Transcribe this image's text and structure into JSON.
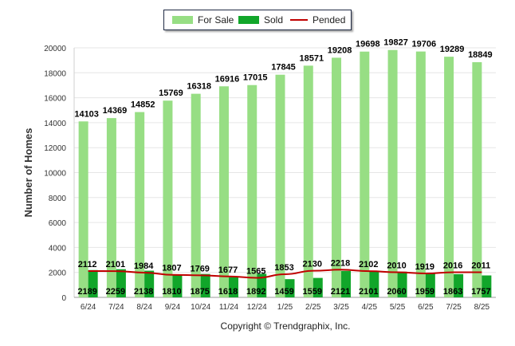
{
  "chart_data": {
    "type": "bar",
    "ylabel": "Number of Homes",
    "xlabel": "",
    "ylim": [
      0,
      20000
    ],
    "yticks": [
      0,
      2000,
      4000,
      6000,
      8000,
      10000,
      12000,
      14000,
      16000,
      18000,
      20000
    ],
    "categories": [
      "6/24",
      "7/24",
      "8/24",
      "9/24",
      "10/24",
      "11/24",
      "12/24",
      "1/25",
      "2/25",
      "3/25",
      "4/25",
      "5/25",
      "6/25",
      "7/25",
      "8/25"
    ],
    "series": [
      {
        "name": "For Sale",
        "kind": "bar",
        "color": "#97de84",
        "values": [
          14103,
          14369,
          14852,
          15769,
          16318,
          16916,
          17015,
          17845,
          18571,
          19208,
          19698,
          19827,
          19706,
          19289,
          18849
        ]
      },
      {
        "name": "Sold",
        "kind": "bar",
        "color": "#11a62a",
        "values": [
          2189,
          2259,
          2138,
          1810,
          1875,
          1618,
          1892,
          1459,
          1559,
          2121,
          2101,
          2060,
          1959,
          1863,
          1757
        ]
      },
      {
        "name": "Pended",
        "kind": "line",
        "color": "#c00000",
        "values": [
          2112,
          2101,
          1984,
          1807,
          1769,
          1677,
          1565,
          1853,
          2130,
          2218,
          2102,
          2010,
          1919,
          2016,
          2011
        ]
      }
    ],
    "grid": true,
    "legend_position": "top-center"
  },
  "footer": {
    "copyright": "Copyright © Trendgraphix, Inc."
  }
}
